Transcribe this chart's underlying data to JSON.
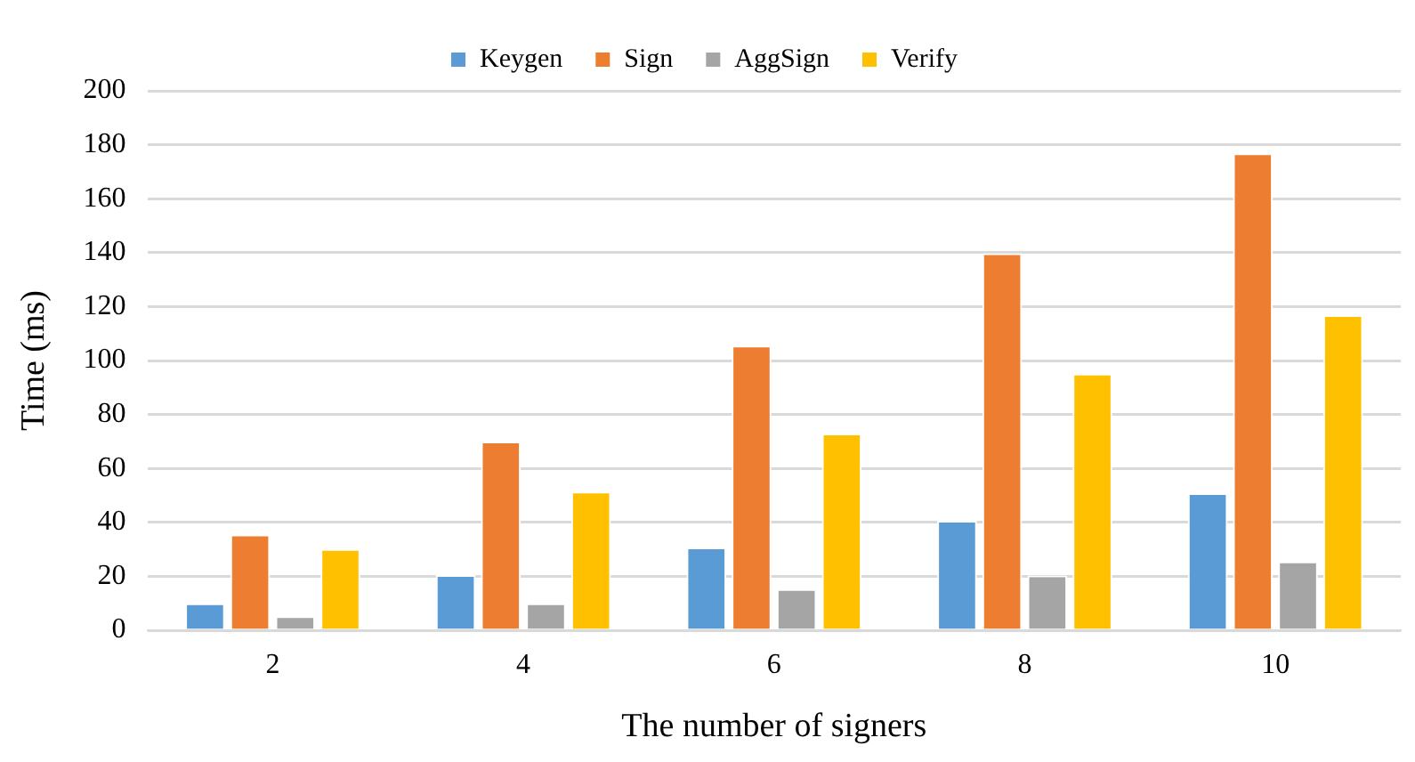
{
  "chart_data": {
    "type": "bar",
    "xlabel": "The number of signers",
    "ylabel": "Time (ms)",
    "categories": [
      "2",
      "4",
      "6",
      "8",
      "10"
    ],
    "series": [
      {
        "name": "Keygen",
        "color": "#5b9bd5",
        "values": [
          10,
          20.5,
          30.7,
          40.6,
          50.8
        ]
      },
      {
        "name": "Sign",
        "color": "#ed7d31",
        "values": [
          35.5,
          70,
          105.5,
          139.8,
          176.8
        ]
      },
      {
        "name": "AggSign",
        "color": "#a5a5a5",
        "values": [
          5.2,
          10,
          15.3,
          20.3,
          25.5
        ]
      },
      {
        "name": "Verify",
        "color": "#ffc000",
        "values": [
          30.1,
          51.4,
          72.9,
          95.1,
          116.8
        ]
      }
    ],
    "ylim": [
      0,
      200
    ],
    "yticks": [
      0,
      20,
      40,
      60,
      80,
      100,
      120,
      140,
      160,
      180,
      200
    ],
    "grid": "y",
    "legend": "top"
  }
}
